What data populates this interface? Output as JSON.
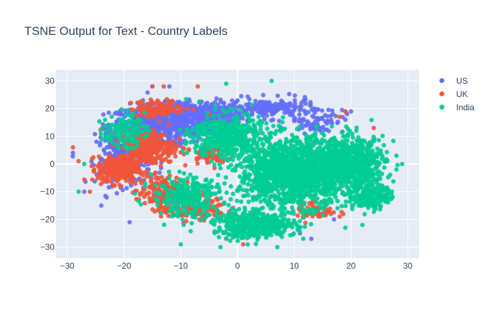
{
  "title": "TSNE Output for Text - Country Labels",
  "chart_data": {
    "type": "scatter",
    "title": "TSNE Output for Text - Country Labels",
    "xlabel": "",
    "ylabel": "",
    "xlim": [
      -32,
      32
    ],
    "ylim": [
      -34,
      34
    ],
    "x_ticks": [
      -30,
      -20,
      -10,
      0,
      10,
      20,
      30
    ],
    "y_ticks": [
      -30,
      -20,
      -10,
      0,
      10,
      20,
      30
    ],
    "grid": true,
    "legend_position": "top-right",
    "series": [
      {
        "name": "US",
        "color": "#636efa",
        "clusters": [
          {
            "center": [
              -14,
              14
            ],
            "spread": [
              7,
              6
            ],
            "count": 650
          },
          {
            "center": [
              -6,
              18
            ],
            "spread": [
              6,
              4
            ],
            "count": 350
          },
          {
            "center": [
              -20,
              2
            ],
            "spread": [
              4,
              8
            ],
            "count": 220
          },
          {
            "center": [
              6,
              20
            ],
            "spread": [
              6,
              3
            ],
            "count": 160
          },
          {
            "center": [
              14,
              16
            ],
            "spread": [
              4,
              4
            ],
            "count": 80
          }
        ],
        "points": [
          [
            -29,
            4
          ],
          [
            -27,
            -10
          ],
          [
            -24,
            -15
          ],
          [
            -19,
            -21
          ],
          [
            16,
            -17
          ],
          [
            17,
            -20
          ],
          [
            13,
            -27
          ],
          [
            11,
            -25
          ],
          [
            19,
            16
          ],
          [
            20,
            19
          ],
          [
            -15,
            28
          ],
          [
            -12,
            28
          ]
        ]
      },
      {
        "name": "UK",
        "color": "#ef553b",
        "clusters": [
          {
            "center": [
              -21,
              -2
            ],
            "spread": [
              3,
              4
            ],
            "count": 300
          },
          {
            "center": [
              -16,
              6
            ],
            "spread": [
              4,
              5
            ],
            "count": 320
          },
          {
            "center": [
              -13,
              -10
            ],
            "spread": [
              4,
              5
            ],
            "count": 200
          },
          {
            "center": [
              -8,
              -16
            ],
            "spread": [
              5,
              4
            ],
            "count": 140
          },
          {
            "center": [
              -14,
              20
            ],
            "spread": [
              4,
              2.5
            ],
            "count": 120
          },
          {
            "center": [
              -5,
              4
            ],
            "spread": [
              2.5,
              3
            ],
            "count": 90
          },
          {
            "center": [
              14,
              -17
            ],
            "spread": [
              3,
              3
            ],
            "count": 45
          }
        ],
        "points": [
          [
            -29,
            6
          ],
          [
            -28,
            1
          ],
          [
            -26,
            -10
          ],
          [
            -13,
            28
          ],
          [
            -15,
            28
          ],
          [
            -7,
            28
          ],
          [
            -5,
            18
          ],
          [
            18,
            17
          ],
          [
            19,
            19
          ],
          [
            23,
            -13
          ],
          [
            24,
            13
          ],
          [
            -2,
            -27
          ],
          [
            1,
            -29
          ],
          [
            18,
            -19
          ]
        ]
      },
      {
        "name": "India",
        "color": "#00cc96",
        "clusters": [
          {
            "center": [
              10,
              -3
            ],
            "spread": [
              8,
              10
            ],
            "count": 1600
          },
          {
            "center": [
              20,
              0
            ],
            "spread": [
              5,
              8
            ],
            "count": 650
          },
          {
            "center": [
              3,
              -22
            ],
            "spread": [
              6,
              4
            ],
            "count": 450
          },
          {
            "center": [
              -2,
              10
            ],
            "spread": [
              5,
              7
            ],
            "count": 450
          },
          {
            "center": [
              -9,
              -12
            ],
            "spread": [
              5,
              6
            ],
            "count": 280
          },
          {
            "center": [
              -20,
              12
            ],
            "spread": [
              3,
              5
            ],
            "count": 120
          },
          {
            "center": [
              24,
              -12
            ],
            "spread": [
              3,
              4
            ],
            "count": 180
          }
        ],
        "points": [
          [
            6,
            30
          ],
          [
            -2,
            29
          ],
          [
            -27,
            0
          ],
          [
            -28,
            -10
          ],
          [
            -10,
            -29
          ],
          [
            -3,
            -30
          ],
          [
            7,
            -30
          ],
          [
            28,
            -2
          ],
          [
            29,
            0
          ],
          [
            28,
            3
          ],
          [
            19,
            -23
          ],
          [
            22,
            -22
          ]
        ]
      }
    ]
  },
  "legend": [
    {
      "label": "US",
      "color": "#636efa"
    },
    {
      "label": "UK",
      "color": "#ef553b"
    },
    {
      "label": "India",
      "color": "#00cc96"
    }
  ]
}
